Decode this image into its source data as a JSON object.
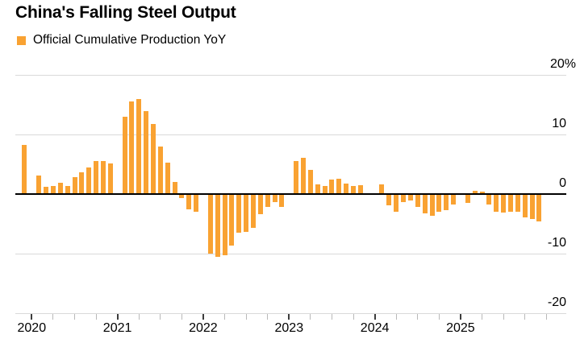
{
  "title": "China's Falling Steel Output",
  "legend": {
    "label": "Official Cumulative Production YoY",
    "swatch_color": "#F9A232"
  },
  "y_axis": {
    "tick_labels": [
      "20%",
      "10",
      "0",
      "-10",
      "-20"
    ],
    "tick_values": [
      20,
      10,
      0,
      -10,
      -20
    ]
  },
  "x_axis": {
    "year_labels": [
      "2020",
      "2021",
      "2022",
      "2023",
      "2024",
      "2025"
    ]
  },
  "chart_data": {
    "type": "bar",
    "title": "China's Falling Steel Output",
    "series_name": "Official Cumulative Production YoY",
    "unit": "percent, year-over-year",
    "ylim": [
      -20,
      20
    ],
    "gridlines": [
      20,
      10,
      0,
      -10,
      -20
    ],
    "legend_position": "top-left",
    "axis_label_side": "right",
    "bar_color": "#F9A232",
    "categories": [
      "Dec 2019",
      "Feb 2020",
      "Mar 2020",
      "Apr 2020",
      "May 2020",
      "Jun 2020",
      "Jul 2020",
      "Aug 2020",
      "Sep 2020",
      "Oct 2020",
      "Nov 2020",
      "Dec 2020",
      "Feb 2021",
      "Mar 2021",
      "Apr 2021",
      "May 2021",
      "Jun 2021",
      "Jul 2021",
      "Aug 2021",
      "Sep 2021",
      "Oct 2021",
      "Nov 2021",
      "Dec 2021",
      "Feb 2022",
      "Mar 2022",
      "Apr 2022",
      "May 2022",
      "Jun 2022",
      "Jul 2022",
      "Aug 2022",
      "Sep 2022",
      "Oct 2022",
      "Nov 2022",
      "Dec 2022",
      "Feb 2023",
      "Mar 2023",
      "Apr 2023",
      "May 2023",
      "Jun 2023",
      "Jul 2023",
      "Aug 2023",
      "Sep 2023",
      "Oct 2023",
      "Nov 2023",
      "Dec 2023",
      "Feb 2024",
      "Mar 2024",
      "Apr 2024",
      "May 2024",
      "Jun 2024",
      "Jul 2024",
      "Aug 2024",
      "Sep 2024",
      "Oct 2024",
      "Nov 2024",
      "Dec 2024",
      "Feb 2025",
      "Mar 2025",
      "Apr 2025",
      "May 2025",
      "Jun 2025",
      "Jul 2025",
      "Aug 2025",
      "Sep 2025",
      "Oct 2025",
      "Nov 2025",
      "Dec 2025"
    ],
    "values": [
      8.3,
      3.1,
      1.2,
      1.3,
      1.9,
      1.4,
      2.8,
      3.7,
      4.5,
      5.5,
      5.5,
      5.2,
      13.0,
      15.6,
      16.0,
      13.9,
      11.8,
      8.0,
      5.3,
      2.0,
      -0.7,
      -2.6,
      -3.0,
      -10.0,
      -10.5,
      -10.3,
      -8.7,
      -6.5,
      -6.4,
      -5.7,
      -3.4,
      -2.2,
      -1.4,
      -2.1,
      5.6,
      6.1,
      4.1,
      1.6,
      1.3,
      2.5,
      2.6,
      1.7,
      1.4,
      1.5,
      0.0,
      1.6,
      -1.9,
      -3.0,
      -1.4,
      -1.1,
      -2.2,
      -3.3,
      -3.6,
      -3.0,
      -2.7,
      -1.7,
      -1.5,
      0.6,
      0.4,
      -1.7,
      -3.0,
      -3.1,
      -2.9,
      -3.0,
      -3.9,
      -4.2,
      -4.6
    ]
  }
}
